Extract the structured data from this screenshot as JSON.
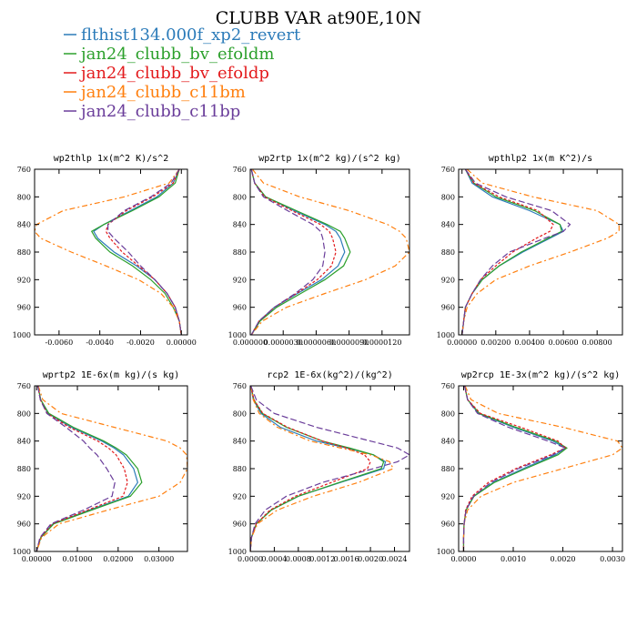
{
  "figure": {
    "title": "CLUBB VAR at90E,10N"
  },
  "legend": [
    {
      "name": "flthist134.000f_xp2_revert",
      "color": "#2b7bb9",
      "dash": ""
    },
    {
      "name": "jan24_clubb_bv_efoldm",
      "color": "#2ca02c",
      "dash": ""
    },
    {
      "name": "jan24_clubb_bv_efoldp",
      "color": "#e31a1c",
      "dash": "3,2"
    },
    {
      "name": "jan24_clubb_c11bm",
      "color": "#ff7f0e",
      "dash": "6,3,2,3"
    },
    {
      "name": "jan24_clubb_c11bp",
      "color": "#6a3d9a",
      "dash": "7,3"
    }
  ],
  "chart_data": [
    {
      "type": "line",
      "title": "wp2thlp  1x(m^2 K)/s^2",
      "y": [
        760,
        780,
        800,
        820,
        840,
        850,
        860,
        880,
        900,
        920,
        940,
        960,
        980,
        1000
      ],
      "yticks": [
        760,
        800,
        840,
        880,
        920,
        960,
        1000
      ],
      "ylim": [
        1000,
        760
      ],
      "xlim": [
        -0.0072,
        0.0003
      ],
      "xticks": [
        -0.006,
        -0.004,
        -0.002,
        0.0
      ],
      "xticklabels": [
        "-0.0060",
        "-0.0040",
        "-0.0020",
        "0.00000"
      ],
      "series": [
        {
          "name": "flthist134.000f_xp2_revert",
          "values": [
            -0.0001,
            -0.0004,
            -0.0012,
            -0.0025,
            -0.0038,
            -0.0043,
            -0.0041,
            -0.0033,
            -0.0022,
            -0.0013,
            -0.0007,
            -0.0003,
            -0.0001,
            0.0
          ]
        },
        {
          "name": "jan24_clubb_bv_efoldm",
          "values": [
            -0.0001,
            -0.0003,
            -0.0011,
            -0.0024,
            -0.0038,
            -0.0044,
            -0.0042,
            -0.0035,
            -0.0024,
            -0.0015,
            -0.0008,
            -0.0004,
            -0.0001,
            0.0
          ]
        },
        {
          "name": "jan24_clubb_bv_efoldp",
          "values": [
            -0.0001,
            -0.0004,
            -0.0014,
            -0.0027,
            -0.0036,
            -0.0037,
            -0.0035,
            -0.0029,
            -0.0021,
            -0.0013,
            -0.0007,
            -0.0003,
            -0.0001,
            0.0
          ]
        },
        {
          "name": "jan24_clubb_c11bm",
          "values": [
            -0.0001,
            -0.0006,
            -0.0028,
            -0.0058,
            -0.0071,
            -0.0072,
            -0.0069,
            -0.0054,
            -0.0037,
            -0.0021,
            -0.001,
            -0.0004,
            -0.0001,
            0.0
          ]
        },
        {
          "name": "jan24_clubb_c11bp",
          "values": [
            -0.0001,
            -0.0005,
            -0.0015,
            -0.0028,
            -0.0036,
            -0.0036,
            -0.0033,
            -0.0026,
            -0.002,
            -0.0013,
            -0.0007,
            -0.0003,
            -0.0001,
            0.0
          ]
        }
      ]
    },
    {
      "type": "line",
      "title": "wp2rtp  1x(m^2 kg)/(s^2 kg)",
      "y": [
        760,
        780,
        800,
        820,
        840,
        850,
        860,
        880,
        900,
        920,
        940,
        960,
        980,
        1000
      ],
      "yticks": [
        760,
        800,
        840,
        880,
        920,
        960,
        1000
      ],
      "ylim": [
        1000,
        760
      ],
      "xlim": [
        0.0,
        1.45e-05
      ],
      "xticks": [
        0.0,
        3e-06,
        6e-06,
        9e-06,
        1.2e-05
      ],
      "xticklabels": [
        "0.000000",
        "0.0000030",
        "0.0000060",
        "0.0000090",
        "0.0000120"
      ],
      "series": [
        {
          "name": "flthist134.000f_xp2_revert",
          "values": [
            1e-07,
            4e-07,
            1.4e-06,
            4e-06,
            6.8e-06,
            7.8e-06,
            8.2e-06,
            8.6e-06,
            8e-06,
            6.5e-06,
            4.3e-06,
            2.2e-06,
            8e-07,
            1e-07
          ]
        },
        {
          "name": "jan24_clubb_bv_efoldm",
          "values": [
            1e-07,
            4e-07,
            1.4e-06,
            4.2e-06,
            7e-06,
            8.2e-06,
            8.6e-06,
            9.1e-06,
            8.5e-06,
            6.8e-06,
            4.6e-06,
            2.4e-06,
            9e-07,
            1e-07
          ]
        },
        {
          "name": "jan24_clubb_bv_efoldp",
          "values": [
            1e-07,
            4e-07,
            1.3e-06,
            3.8e-06,
            6.4e-06,
            7.2e-06,
            7.5e-06,
            7.8e-06,
            7.4e-06,
            6.1e-06,
            4.2e-06,
            2.2e-06,
            8e-07,
            1e-07
          ]
        },
        {
          "name": "jan24_clubb_c11bm",
          "values": [
            2e-07,
            1.2e-06,
            4.5e-06,
            9e-06,
            1.25e-05,
            1.36e-05,
            1.42e-05,
            1.45e-05,
            1.32e-05,
            1.05e-05,
            6.8e-06,
            3.3e-06,
            1.1e-06,
            1e-07
          ]
        },
        {
          "name": "jan24_clubb_c11bp",
          "values": [
            1e-07,
            4e-07,
            1.2e-06,
            3.4e-06,
            5.7e-06,
            6.4e-06,
            6.6e-06,
            6.8e-06,
            6.6e-06,
            5.7e-06,
            4.1e-06,
            2.2e-06,
            8e-07,
            1e-07
          ]
        }
      ]
    },
    {
      "type": "line",
      "title": "wpthlp2  1x(m K^2)/s",
      "y": [
        760,
        780,
        800,
        820,
        840,
        850,
        860,
        880,
        900,
        920,
        940,
        960,
        980,
        1000
      ],
      "yticks": [
        760,
        800,
        840,
        880,
        920,
        960,
        1000
      ],
      "ylim": [
        1000,
        760
      ],
      "xlim": [
        -0.0002,
        0.0095
      ],
      "xticks": [
        0.0,
        0.002,
        0.004,
        0.006,
        0.008
      ],
      "xticklabels": [
        "0.00000",
        "0.00200",
        "0.00400",
        "0.00600",
        "0.00800"
      ],
      "series": [
        {
          "name": "flthist134.000f_xp2_revert",
          "values": [
            0.0002,
            0.0006,
            0.0018,
            0.004,
            0.0058,
            0.006,
            0.0052,
            0.0036,
            0.0022,
            0.0012,
            0.0006,
            0.0002,
            0.0001,
            0.0
          ]
        },
        {
          "name": "jan24_clubb_bv_efoldm",
          "values": [
            0.0002,
            0.0007,
            0.002,
            0.0043,
            0.0058,
            0.0059,
            0.0051,
            0.0035,
            0.0022,
            0.0012,
            0.0006,
            0.0002,
            0.0001,
            0.0
          ]
        },
        {
          "name": "jan24_clubb_bv_efoldp",
          "values": [
            0.0002,
            0.0007,
            0.0022,
            0.0045,
            0.0054,
            0.0052,
            0.0044,
            0.003,
            0.002,
            0.0011,
            0.0006,
            0.0002,
            0.0001,
            0.0
          ]
        },
        {
          "name": "jan24_clubb_c11bm",
          "values": [
            0.0003,
            0.0012,
            0.0042,
            0.008,
            0.0093,
            0.0093,
            0.0086,
            0.0064,
            0.004,
            0.002,
            0.0009,
            0.0003,
            0.0001,
            0.0
          ]
        },
        {
          "name": "jan24_clubb_c11bp",
          "values": [
            0.0002,
            0.0008,
            0.0026,
            0.0053,
            0.0064,
            0.006,
            0.0049,
            0.0028,
            0.0018,
            0.0011,
            0.0006,
            0.0002,
            0.0001,
            0.0
          ]
        }
      ]
    },
    {
      "type": "line",
      "title": "wprtp2  1E-6x(m kg)/(s kg)",
      "y": [
        760,
        780,
        800,
        820,
        840,
        850,
        860,
        880,
        900,
        920,
        940,
        960,
        980,
        1000
      ],
      "yticks": [
        760,
        800,
        840,
        880,
        920,
        960,
        1000
      ],
      "ylim": [
        1000,
        760
      ],
      "xlim": [
        -0.0005,
        0.037
      ],
      "xticks": [
        0.0,
        0.01,
        0.02,
        0.03
      ],
      "xticklabels": [
        "0.00000",
        "0.01000",
        "0.02000",
        "0.03000"
      ],
      "series": [
        {
          "name": "flthist134.000f_xp2_revert",
          "values": [
            0.0003,
            0.001,
            0.0028,
            0.0085,
            0.016,
            0.019,
            0.0213,
            0.0238,
            0.0248,
            0.0225,
            0.013,
            0.004,
            0.001,
            0.0
          ]
        },
        {
          "name": "jan24_clubb_bv_efoldm",
          "values": [
            0.0003,
            0.001,
            0.003,
            0.009,
            0.0165,
            0.0195,
            0.022,
            0.0248,
            0.0258,
            0.023,
            0.0135,
            0.0042,
            0.001,
            0.0
          ]
        },
        {
          "name": "jan24_clubb_bv_efoldp",
          "values": [
            0.0003,
            0.0009,
            0.0026,
            0.008,
            0.015,
            0.0176,
            0.0195,
            0.0215,
            0.0223,
            0.0212,
            0.0125,
            0.0038,
            0.0009,
            0.0
          ]
        },
        {
          "name": "jan24_clubb_c11bm",
          "values": [
            0.0004,
            0.0015,
            0.006,
            0.019,
            0.032,
            0.0352,
            0.0368,
            0.037,
            0.0352,
            0.03,
            0.0175,
            0.0055,
            0.0012,
            0.0
          ]
        },
        {
          "name": "jan24_clubb_c11bp",
          "values": [
            0.0003,
            0.0009,
            0.0025,
            0.0072,
            0.0115,
            0.013,
            0.0148,
            0.0172,
            0.0192,
            0.0185,
            0.0115,
            0.0035,
            0.0008,
            0.0
          ]
        }
      ]
    },
    {
      "type": "line",
      "title": "rcp2  1E-6x(kg^2)/(kg^2)",
      "y": [
        760,
        780,
        800,
        820,
        840,
        850,
        860,
        870,
        880,
        900,
        920,
        940,
        960,
        980,
        1000
      ],
      "yticks": [
        760,
        800,
        840,
        880,
        920,
        960,
        1000
      ],
      "ylim": [
        1000,
        760
      ],
      "xlim": [
        0.0,
        0.00265
      ],
      "xticks": [
        0.0,
        0.0004,
        0.0008,
        0.0012,
        0.0016,
        0.002,
        0.0024
      ],
      "xticklabels": [
        "0.0000",
        "0.0004",
        "0.0008",
        "0.0012",
        "0.0016",
        "0.0020",
        "0.0024"
      ],
      "series": [
        {
          "name": "flthist134.000f_xp2_revert",
          "values": [
            1e-05,
            5e-05,
            0.00018,
            0.0005,
            0.0011,
            0.0016,
            0.00205,
            0.00225,
            0.00222,
            0.0015,
            0.0008,
            0.00035,
            0.0001,
            2e-05,
            0.0
          ]
        },
        {
          "name": "jan24_clubb_bv_efoldm",
          "values": [
            1e-05,
            6e-05,
            0.0002,
            0.0006,
            0.0012,
            0.00165,
            0.00205,
            0.00222,
            0.00218,
            0.00148,
            0.0008,
            0.00035,
            0.0001,
            2e-05,
            0.0
          ]
        },
        {
          "name": "jan24_clubb_bv_efoldp",
          "values": [
            1e-05,
            6e-05,
            0.00021,
            0.00062,
            0.0012,
            0.0016,
            0.0019,
            0.002,
            0.00195,
            0.00135,
            0.00075,
            0.00033,
            0.0001,
            2e-05,
            0.0
          ]
        },
        {
          "name": "jan24_clubb_c11bm",
          "values": [
            1e-05,
            5e-05,
            0.00015,
            0.00045,
            0.001,
            0.0015,
            0.002,
            0.00232,
            0.00238,
            0.0018,
            0.00105,
            0.00045,
            0.00012,
            2e-05,
            0.0
          ]
        },
        {
          "name": "jan24_clubb_c11bp",
          "values": [
            1e-05,
            0.0001,
            0.0004,
            0.0011,
            0.002,
            0.00245,
            0.00265,
            0.00245,
            0.00205,
            0.0012,
            0.0006,
            0.00025,
            8e-05,
            2e-05,
            0.0
          ]
        }
      ]
    },
    {
      "type": "line",
      "title": "wp2rcp  1E-3x(m^2 kg)/(s^2 kg)",
      "y": [
        760,
        780,
        800,
        820,
        840,
        850,
        860,
        880,
        900,
        920,
        940,
        960,
        980,
        1000
      ],
      "yticks": [
        760,
        800,
        840,
        880,
        920,
        960,
        1000
      ],
      "ylim": [
        1000,
        760
      ],
      "xlim": [
        -0.0001,
        0.0032
      ],
      "xticks": [
        0.0,
        0.001,
        0.002,
        0.003
      ],
      "xticklabels": [
        "0.0000",
        "0.0010",
        "0.0020",
        "0.0030"
      ],
      "series": [
        {
          "name": "flthist134.000f_xp2_revert",
          "values": [
            2e-05,
            8e-05,
            0.0003,
            0.001,
            0.0018,
            0.00205,
            0.00185,
            0.0012,
            0.0006,
            0.0002,
            5e-05,
            1e-05,
            0.0,
            0.0
          ]
        },
        {
          "name": "jan24_clubb_bv_efoldm",
          "values": [
            2e-05,
            8e-05,
            0.00032,
            0.00105,
            0.00185,
            0.00208,
            0.0019,
            0.00125,
            0.00062,
            0.00021,
            5e-05,
            1e-05,
            0.0,
            0.0
          ]
        },
        {
          "name": "jan24_clubb_bv_efoldp",
          "values": [
            2e-05,
            8e-05,
            0.00034,
            0.00115,
            0.0019,
            0.00205,
            0.00175,
            0.00105,
            0.0005,
            0.00017,
            4e-05,
            1e-05,
            0.0,
            0.0
          ]
        },
        {
          "name": "jan24_clubb_c11bm",
          "values": [
            3e-05,
            0.00015,
            0.0007,
            0.002,
            0.0031,
            0.0032,
            0.003,
            0.002,
            0.001,
            0.00035,
            8e-05,
            1e-05,
            0.0,
            0.0
          ]
        },
        {
          "name": "jan24_clubb_c11bp",
          "values": [
            2e-05,
            8e-05,
            0.00028,
            0.0009,
            0.0017,
            0.00205,
            0.0018,
            0.0011,
            0.00055,
            0.0002,
            5e-05,
            1e-05,
            0.0,
            0.0
          ]
        }
      ]
    }
  ]
}
